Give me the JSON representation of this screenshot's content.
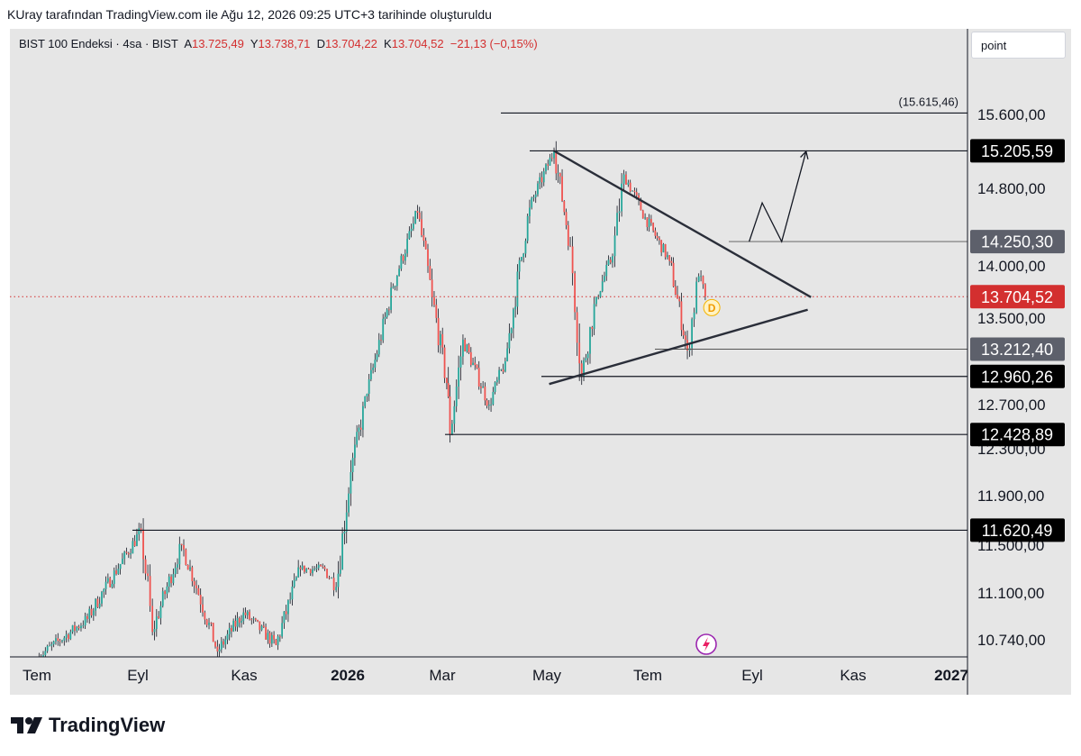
{
  "caption": "KUray tarafından TradingView.com ile Ağu 12, 2026 09:25 UTC+3 tarihinde oluşturuldu",
  "legend": {
    "symbol": "BIST 100 Endeksi · 4sa · BIST",
    "open_label": "A",
    "open": "13.725,49",
    "high_label": "Y",
    "high": "13.738,71",
    "low_label": "D",
    "low": "13.704,22",
    "close_label": "K",
    "close": "13.704,52",
    "change": "−21,13 (−0,15%)"
  },
  "point_box": "point",
  "brand": "TradingView",
  "colors": {
    "up": "#26a69a",
    "down": "#ef5350",
    "wick": "#131722",
    "last_price": "#d32f2f",
    "panel": "#e6e6e6",
    "level_label": "#131722"
  },
  "chart_data": {
    "type": "candlestick",
    "symbol": "BIST 100",
    "timeframe": "4sa",
    "x_ticks": [
      "Tem",
      "Eyl",
      "Kas",
      "2026",
      "Mar",
      "May",
      "Tem",
      "Eyl",
      "Kas",
      "2027"
    ],
    "y_ticks": [
      "15.600,00",
      "14.800,00",
      "14.000,00",
      "13.500,00",
      "12.700,00",
      "12.300,00",
      "11.900,00",
      "11.500,00",
      "11.100,00",
      "10.740,00"
    ],
    "ylim": [
      10600,
      16200
    ],
    "last_price": {
      "value": 13704.52,
      "label": "13.704,52"
    },
    "levels": [
      {
        "value": 15615.46,
        "label": "(15.615,46)",
        "style": "plain"
      },
      {
        "value": 15205.59,
        "label": "15.205,59",
        "style": "black"
      },
      {
        "value": 14250.3,
        "label": "14.250,30",
        "style": "gray"
      },
      {
        "value": 13212.4,
        "label": "13.212,40",
        "style": "gray"
      },
      {
        "value": 12960.26,
        "label": "12.960,26",
        "style": "black"
      },
      {
        "value": 12428.89,
        "label": "12.428,89",
        "style": "black"
      },
      {
        "value": 11620.49,
        "label": "11.620,49",
        "style": "black"
      }
    ],
    "key_points": [
      {
        "time": "2025-07-01",
        "price": 10600
      },
      {
        "time": "2025-08-01",
        "price": 10900
      },
      {
        "time": "2025-09-03",
        "price": 11620
      },
      {
        "time": "2025-09-10",
        "price": 10800
      },
      {
        "time": "2025-09-28",
        "price": 11500
      },
      {
        "time": "2025-10-20",
        "price": 10650
      },
      {
        "time": "2025-11-05",
        "price": 10950
      },
      {
        "time": "2025-11-25",
        "price": 10700
      },
      {
        "time": "2025-12-10",
        "price": 11300
      },
      {
        "time": "2025-12-25",
        "price": 11300
      },
      {
        "time": "2026-01-01",
        "price": 11150
      },
      {
        "time": "2026-01-10",
        "price": 12100
      },
      {
        "time": "2026-01-20",
        "price": 12800
      },
      {
        "time": "2026-02-05",
        "price": 13800
      },
      {
        "time": "2026-02-20",
        "price": 14550
      },
      {
        "time": "2026-03-01",
        "price": 13700
      },
      {
        "time": "2026-03-10",
        "price": 12900
      },
      {
        "time": "2026-03-12",
        "price": 12430
      },
      {
        "time": "2026-03-20",
        "price": 13300
      },
      {
        "time": "2026-04-05",
        "price": 12700
      },
      {
        "time": "2026-04-15",
        "price": 13100
      },
      {
        "time": "2026-04-30",
        "price": 14600
      },
      {
        "time": "2026-05-15",
        "price": 15205
      },
      {
        "time": "2026-05-25",
        "price": 14200
      },
      {
        "time": "2026-06-01",
        "price": 12960
      },
      {
        "time": "2026-06-10",
        "price": 13700
      },
      {
        "time": "2026-06-20",
        "price": 14100
      },
      {
        "time": "2026-06-27",
        "price": 14950
      },
      {
        "time": "2026-07-10",
        "price": 14500
      },
      {
        "time": "2026-07-25",
        "price": 14050
      },
      {
        "time": "2026-08-05",
        "price": 13200
      },
      {
        "time": "2026-08-12",
        "price": 13900
      },
      {
        "time": "2026-08-16",
        "price": 13705
      }
    ],
    "trendlines": [
      {
        "from": {
          "time": "2026-05-15",
          "price": 15205
        },
        "to": {
          "time": "2026-10-20",
          "price": 13700
        }
      },
      {
        "from": {
          "time": "2026-05-12",
          "price": 12890
        },
        "to": {
          "time": "2026-10-18",
          "price": 13580
        }
      }
    ],
    "projection": [
      {
        "time": "2026-09-12",
        "price": 14250
      },
      {
        "time": "2026-09-20",
        "price": 14650
      },
      {
        "time": "2026-10-02",
        "price": 14250
      },
      {
        "time": "2026-10-17",
        "price": 15200
      }
    ],
    "markers": [
      {
        "time": "2026-08-20",
        "price": 13600,
        "label": "D"
      }
    ]
  }
}
